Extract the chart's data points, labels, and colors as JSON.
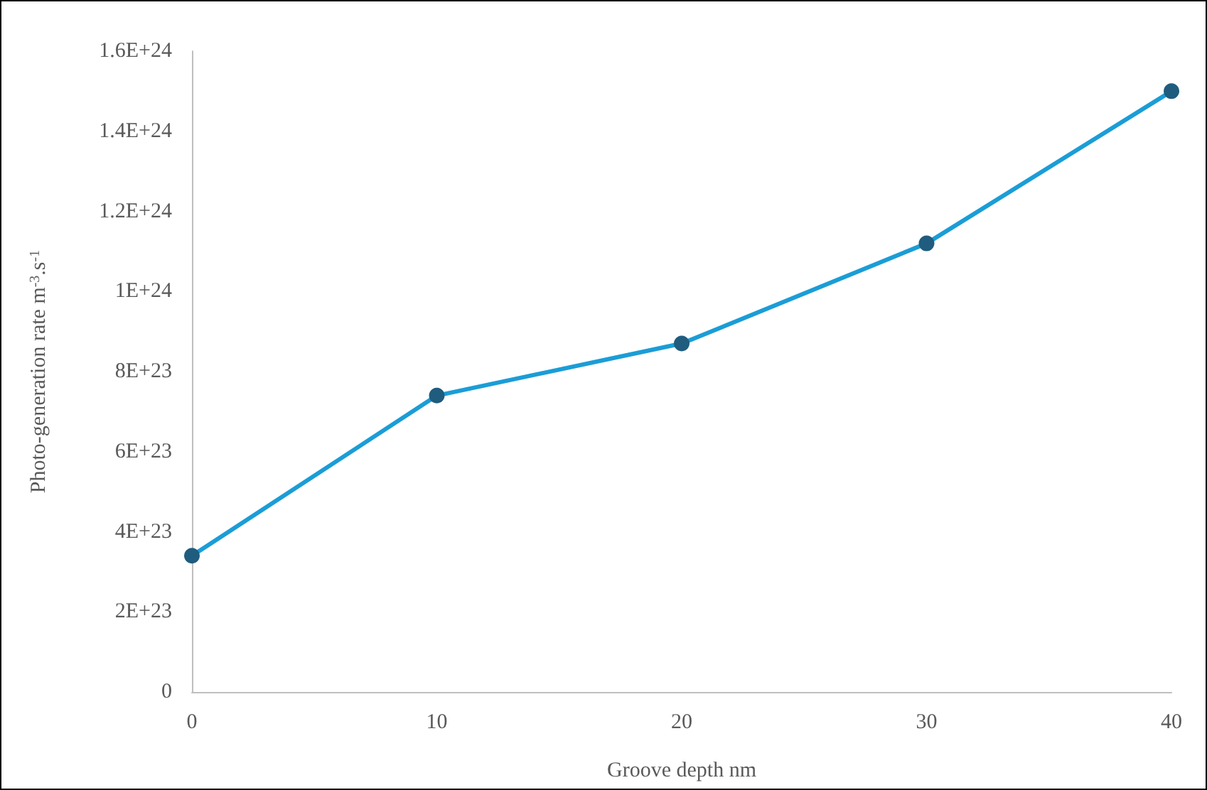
{
  "chart_data": {
    "type": "line",
    "xlabel": "Groove depth nm",
    "ylabel": "Photo-generation rate m$^{-3}$.s$^{-1}$",
    "x": [
      0,
      10,
      20,
      30,
      40
    ],
    "series": [
      {
        "color": "#1b9dd6",
        "colors": [
          "#1f5c7e",
          "#1f5c7e",
          "#1f5c7e",
          "#1f5c7e",
          "#1f5c7e"
        ],
        "values": [
          3.4e+23,
          7.4e+23,
          8.7e+23,
          1.12e+24,
          1.5e+24
        ]
      }
    ],
    "xlim": [
      0,
      40
    ],
    "xticks": [
      0,
      10,
      20,
      30,
      40
    ],
    "ylim": [
      0,
      1.6e+24
    ],
    "yticks": [
      {
        "value": 0,
        "label": "0"
      },
      {
        "value": 2e+23,
        "label": "2E+23"
      },
      {
        "value": 4e+23,
        "label": "4E+23"
      },
      {
        "value": 6e+23,
        "label": "6E+23"
      },
      {
        "value": 8e+23,
        "label": "8E+23"
      },
      {
        "value": 1e+24,
        "label": "1E+24"
      },
      {
        "value": 1.2e+24,
        "label": "1.2E+24"
      },
      {
        "value": 1.4e+24,
        "label": "1.4E+24"
      },
      {
        "value": 1.6e+24,
        "label": "1.6E+24"
      }
    ],
    "grid": false,
    "marker": "circle",
    "line_style": "solid"
  }
}
